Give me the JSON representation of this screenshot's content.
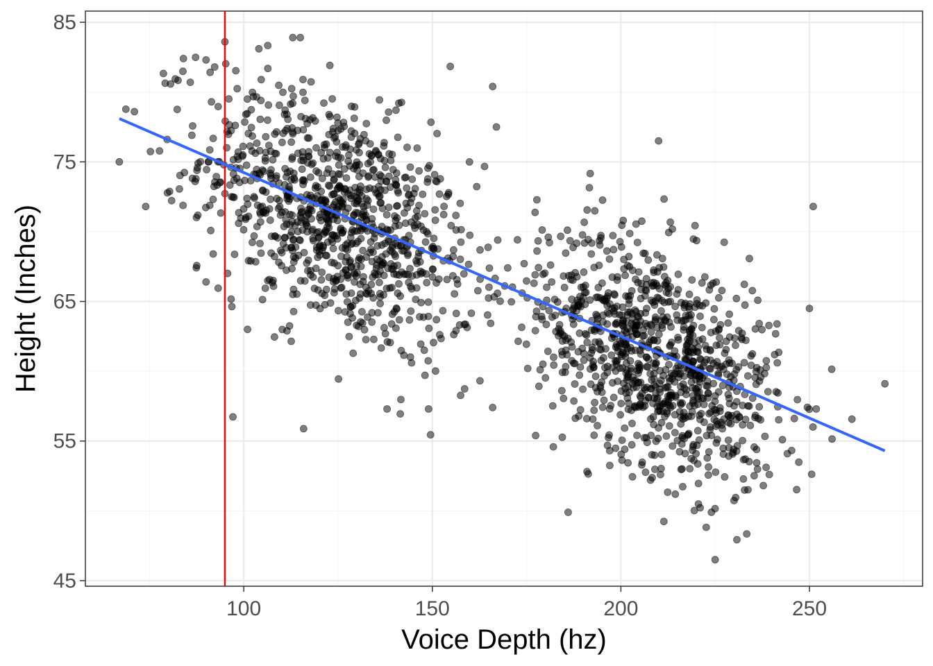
{
  "chart_data": {
    "type": "scatter",
    "title": "",
    "xlabel": "Voice Depth (hz)",
    "ylabel": "Height (Inches)",
    "xlim": [
      58,
      280
    ],
    "ylim": [
      44.6,
      85.8
    ],
    "x_ticks": [
      100,
      150,
      200,
      250
    ],
    "x_tick_labels": [
      "100",
      "150",
      "200",
      "250"
    ],
    "y_ticks": [
      45,
      55,
      65,
      75,
      85
    ],
    "y_tick_labels": [
      "45",
      "55",
      "65",
      "75",
      "85"
    ],
    "x_minor_ticks": [
      75,
      125,
      175,
      225,
      275
    ],
    "y_minor_ticks": [
      50,
      60,
      70,
      80
    ],
    "grid": true,
    "legend": "none",
    "colors": {
      "points": "#000000",
      "regression_line": "#3366FF",
      "reference_line": "#FF0000",
      "grid_major": "#EBEBEB",
      "grid_minor": "#F5F5F5",
      "panel_border": "#333333"
    },
    "reference_vline_x": 95,
    "regression_line": {
      "x": [
        67,
        270
      ],
      "y": [
        78.1,
        54.3
      ]
    },
    "clusters": [
      {
        "name_hidden": true,
        "n": 1000,
        "x_mean": 125,
        "x_sd": 18,
        "y_mean": 71,
        "y_sd": 4.2,
        "slope": -0.12
      },
      {
        "name_hidden": true,
        "n": 1000,
        "x_mean": 210,
        "x_sd": 16,
        "y_mean": 61,
        "y_sd": 4.0,
        "slope": -0.12
      }
    ],
    "highlighted_points": [
      {
        "x": 67,
        "y": 75
      },
      {
        "x": 71,
        "y": 78.6
      },
      {
        "x": 74,
        "y": 71.8
      },
      {
        "x": 84,
        "y": 82.4
      },
      {
        "x": 90,
        "y": 82.3
      },
      {
        "x": 95,
        "y": 83.6
      },
      {
        "x": 104,
        "y": 83.1
      },
      {
        "x": 113,
        "y": 83.9
      },
      {
        "x": 115,
        "y": 83.9
      },
      {
        "x": 166,
        "y": 80.4
      },
      {
        "x": 167,
        "y": 77.5
      },
      {
        "x": 170,
        "y": 67.4
      },
      {
        "x": 210,
        "y": 76.5
      },
      {
        "x": 225,
        "y": 46.5
      },
      {
        "x": 186,
        "y": 49.9
      },
      {
        "x": 224,
        "y": 49.9
      },
      {
        "x": 251,
        "y": 71.8
      },
      {
        "x": 250,
        "y": 64.5
      },
      {
        "x": 270,
        "y": 59.1
      },
      {
        "x": 149,
        "y": 57.3
      },
      {
        "x": 138,
        "y": 57.3
      },
      {
        "x": 166,
        "y": 57.4
      },
      {
        "x": 101,
        "y": 63.0
      },
      {
        "x": 90,
        "y": 66.4
      }
    ]
  }
}
